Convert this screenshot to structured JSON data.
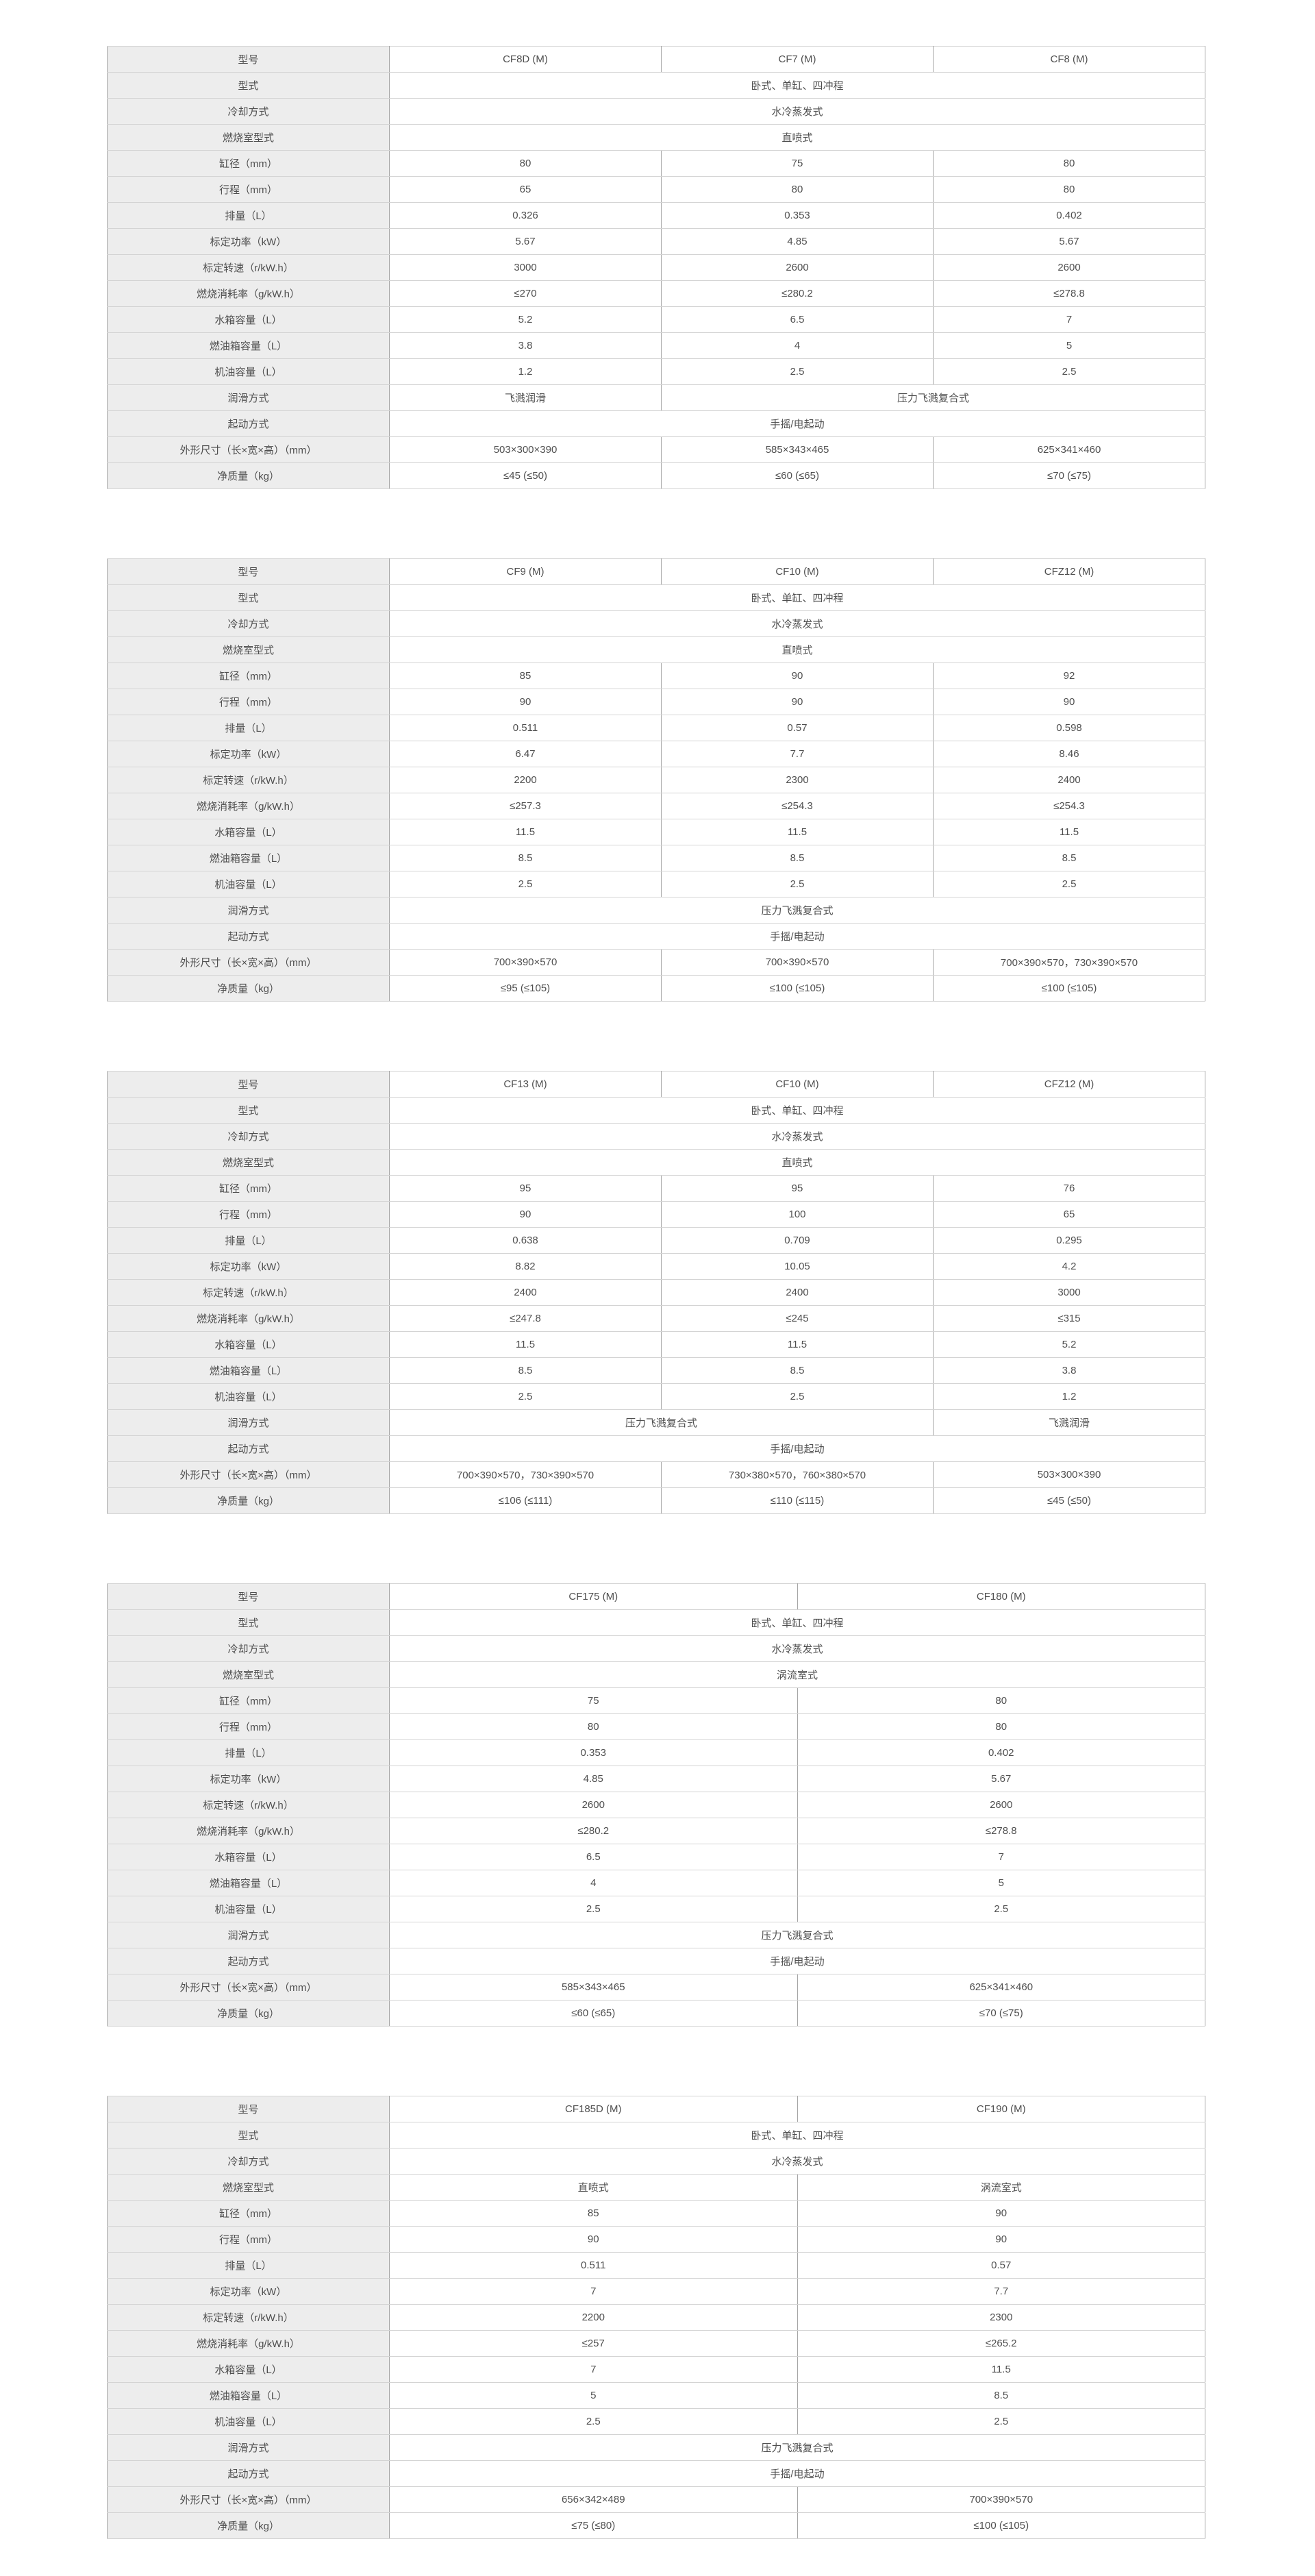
{
  "page": {
    "background": "#ffffff",
    "label_cell_bg": "#ededed",
    "horizontal_border": "#d4d4d4",
    "vertical_border": "#a6a6a6",
    "text_color": "#4f4f4f"
  },
  "row_labels": [
    "型号",
    "型式",
    "冷却方式",
    "燃烧室型式",
    "缸径（mm）",
    "行程（mm）",
    "排量（L）",
    "标定功率（kW）",
    "标定转速（r/kW.h）",
    "燃烧消耗率（g/kW.h）",
    "水箱容量（L）",
    "燃油箱容量（L）",
    "机油容量（L）",
    "润滑方式",
    "起动方式",
    "外形尺寸（长×宽×高）（mm）",
    "净质量（kg）"
  ],
  "tables": [
    {
      "name": "spec-table-1",
      "rows": [
        [
          {
            "t": "CF8D (M)",
            "s": 1
          },
          {
            "t": "CF7 (M)",
            "s": 1
          },
          {
            "t": "CF8 (M)",
            "s": 1
          }
        ],
        [
          {
            "t": "卧式、单缸、四冲程",
            "s": 3
          }
        ],
        [
          {
            "t": "水冷蒸发式",
            "s": 3
          }
        ],
        [
          {
            "t": "直喷式",
            "s": 3
          }
        ],
        [
          {
            "t": "80",
            "s": 1
          },
          {
            "t": "75",
            "s": 1
          },
          {
            "t": "80",
            "s": 1
          }
        ],
        [
          {
            "t": "65",
            "s": 1
          },
          {
            "t": "80",
            "s": 1
          },
          {
            "t": "80",
            "s": 1
          }
        ],
        [
          {
            "t": "0.326",
            "s": 1
          },
          {
            "t": "0.353",
            "s": 1
          },
          {
            "t": "0.402",
            "s": 1
          }
        ],
        [
          {
            "t": "5.67",
            "s": 1
          },
          {
            "t": "4.85",
            "s": 1
          },
          {
            "t": "5.67",
            "s": 1
          }
        ],
        [
          {
            "t": "3000",
            "s": 1
          },
          {
            "t": "2600",
            "s": 1
          },
          {
            "t": "2600",
            "s": 1
          }
        ],
        [
          {
            "t": "≤270",
            "s": 1
          },
          {
            "t": "≤280.2",
            "s": 1
          },
          {
            "t": "≤278.8",
            "s": 1
          }
        ],
        [
          {
            "t": "5.2",
            "s": 1
          },
          {
            "t": "6.5",
            "s": 1
          },
          {
            "t": "7",
            "s": 1
          }
        ],
        [
          {
            "t": "3.8",
            "s": 1
          },
          {
            "t": "4",
            "s": 1
          },
          {
            "t": "5",
            "s": 1
          }
        ],
        [
          {
            "t": "1.2",
            "s": 1
          },
          {
            "t": "2.5",
            "s": 1
          },
          {
            "t": "2.5",
            "s": 1
          }
        ],
        [
          {
            "t": "飞溅润滑",
            "s": 1
          },
          {
            "t": "压力飞溅复合式",
            "s": 2
          }
        ],
        [
          {
            "t": "手摇/电起动",
            "s": 3
          }
        ],
        [
          {
            "t": "503×300×390",
            "s": 1
          },
          {
            "t": "585×343×465",
            "s": 1
          },
          {
            "t": "625×341×460",
            "s": 1
          }
        ],
        [
          {
            "t": "≤45 (≤50)",
            "s": 1
          },
          {
            "t": "≤60 (≤65)",
            "s": 1
          },
          {
            "t": "≤70 (≤75)",
            "s": 1
          }
        ]
      ]
    },
    {
      "name": "spec-table-2",
      "rows": [
        [
          {
            "t": "CF9 (M)",
            "s": 1
          },
          {
            "t": "CF10 (M)",
            "s": 1
          },
          {
            "t": "CFZ12 (M)",
            "s": 1
          }
        ],
        [
          {
            "t": "卧式、单缸、四冲程",
            "s": 3
          }
        ],
        [
          {
            "t": "水冷蒸发式",
            "s": 3
          }
        ],
        [
          {
            "t": "直喷式",
            "s": 3
          }
        ],
        [
          {
            "t": "85",
            "s": 1
          },
          {
            "t": "90",
            "s": 1
          },
          {
            "t": "92",
            "s": 1
          }
        ],
        [
          {
            "t": "90",
            "s": 1
          },
          {
            "t": "90",
            "s": 1
          },
          {
            "t": "90",
            "s": 1
          }
        ],
        [
          {
            "t": "0.511",
            "s": 1
          },
          {
            "t": "0.57",
            "s": 1
          },
          {
            "t": "0.598",
            "s": 1
          }
        ],
        [
          {
            "t": "6.47",
            "s": 1
          },
          {
            "t": "7.7",
            "s": 1
          },
          {
            "t": "8.46",
            "s": 1
          }
        ],
        [
          {
            "t": "2200",
            "s": 1
          },
          {
            "t": "2300",
            "s": 1
          },
          {
            "t": "2400",
            "s": 1
          }
        ],
        [
          {
            "t": "≤257.3",
            "s": 1
          },
          {
            "t": "≤254.3",
            "s": 1
          },
          {
            "t": "≤254.3",
            "s": 1
          }
        ],
        [
          {
            "t": "11.5",
            "s": 1
          },
          {
            "t": "11.5",
            "s": 1
          },
          {
            "t": "11.5",
            "s": 1
          }
        ],
        [
          {
            "t": "8.5",
            "s": 1
          },
          {
            "t": "8.5",
            "s": 1
          },
          {
            "t": "8.5",
            "s": 1
          }
        ],
        [
          {
            "t": "2.5",
            "s": 1
          },
          {
            "t": "2.5",
            "s": 1
          },
          {
            "t": "2.5",
            "s": 1
          }
        ],
        [
          {
            "t": "压力飞溅复合式",
            "s": 3
          }
        ],
        [
          {
            "t": "手摇/电起动",
            "s": 3
          }
        ],
        [
          {
            "t": "700×390×570",
            "s": 1
          },
          {
            "t": "700×390×570",
            "s": 1
          },
          {
            "t": "700×390×570，730×390×570",
            "s": 1
          }
        ],
        [
          {
            "t": "≤95 (≤105)",
            "s": 1
          },
          {
            "t": "≤100 (≤105)",
            "s": 1
          },
          {
            "t": "≤100 (≤105)",
            "s": 1
          }
        ]
      ]
    },
    {
      "name": "spec-table-3",
      "rows": [
        [
          {
            "t": "CF13 (M)",
            "s": 1
          },
          {
            "t": "CF10 (M)",
            "s": 1
          },
          {
            "t": "CFZ12 (M)",
            "s": 1
          }
        ],
        [
          {
            "t": "卧式、单缸、四冲程",
            "s": 3
          }
        ],
        [
          {
            "t": "水冷蒸发式",
            "s": 3
          }
        ],
        [
          {
            "t": "直喷式",
            "s": 3
          }
        ],
        [
          {
            "t": "95",
            "s": 1
          },
          {
            "t": "95",
            "s": 1
          },
          {
            "t": "76",
            "s": 1
          }
        ],
        [
          {
            "t": "90",
            "s": 1
          },
          {
            "t": "100",
            "s": 1
          },
          {
            "t": "65",
            "s": 1
          }
        ],
        [
          {
            "t": "0.638",
            "s": 1
          },
          {
            "t": "0.709",
            "s": 1
          },
          {
            "t": "0.295",
            "s": 1
          }
        ],
        [
          {
            "t": "8.82",
            "s": 1
          },
          {
            "t": "10.05",
            "s": 1
          },
          {
            "t": "4.2",
            "s": 1
          }
        ],
        [
          {
            "t": "2400",
            "s": 1
          },
          {
            "t": "2400",
            "s": 1
          },
          {
            "t": "3000",
            "s": 1
          }
        ],
        [
          {
            "t": "≤247.8",
            "s": 1
          },
          {
            "t": "≤245",
            "s": 1
          },
          {
            "t": "≤315",
            "s": 1
          }
        ],
        [
          {
            "t": "11.5",
            "s": 1
          },
          {
            "t": "11.5",
            "s": 1
          },
          {
            "t": "5.2",
            "s": 1
          }
        ],
        [
          {
            "t": "8.5",
            "s": 1
          },
          {
            "t": "8.5",
            "s": 1
          },
          {
            "t": "3.8",
            "s": 1
          }
        ],
        [
          {
            "t": "2.5",
            "s": 1
          },
          {
            "t": "2.5",
            "s": 1
          },
          {
            "t": "1.2",
            "s": 1
          }
        ],
        [
          {
            "t": "压力飞溅复合式",
            "s": 2
          },
          {
            "t": "飞溅润滑",
            "s": 1
          }
        ],
        [
          {
            "t": "手摇/电起动",
            "s": 3
          }
        ],
        [
          {
            "t": "700×390×570，730×390×570",
            "s": 1
          },
          {
            "t": "730×380×570，760×380×570",
            "s": 1
          },
          {
            "t": "503×300×390",
            "s": 1
          }
        ],
        [
          {
            "t": "≤106 (≤111)",
            "s": 1
          },
          {
            "t": "≤110 (≤115)",
            "s": 1
          },
          {
            "t": "≤45 (≤50)",
            "s": 1
          }
        ]
      ]
    },
    {
      "name": "spec-table-4",
      "rows": [
        [
          {
            "t": "CF175 (M)",
            "s": 1
          },
          {
            "t": "CF180 (M)",
            "s": 1
          }
        ],
        [
          {
            "t": "卧式、单缸、四冲程",
            "s": 2
          }
        ],
        [
          {
            "t": "水冷蒸发式",
            "s": 2
          }
        ],
        [
          {
            "t": "涡流室式",
            "s": 2
          }
        ],
        [
          {
            "t": "75",
            "s": 1
          },
          {
            "t": "80",
            "s": 1
          }
        ],
        [
          {
            "t": "80",
            "s": 1
          },
          {
            "t": "80",
            "s": 1
          }
        ],
        [
          {
            "t": "0.353",
            "s": 1
          },
          {
            "t": "0.402",
            "s": 1
          }
        ],
        [
          {
            "t": "4.85",
            "s": 1
          },
          {
            "t": "5.67",
            "s": 1
          }
        ],
        [
          {
            "t": "2600",
            "s": 1
          },
          {
            "t": "2600",
            "s": 1
          }
        ],
        [
          {
            "t": "≤280.2",
            "s": 1
          },
          {
            "t": "≤278.8",
            "s": 1
          }
        ],
        [
          {
            "t": "6.5",
            "s": 1
          },
          {
            "t": "7",
            "s": 1
          }
        ],
        [
          {
            "t": "4",
            "s": 1
          },
          {
            "t": "5",
            "s": 1
          }
        ],
        [
          {
            "t": "2.5",
            "s": 1
          },
          {
            "t": "2.5",
            "s": 1
          }
        ],
        [
          {
            "t": "压力飞溅复合式",
            "s": 2
          }
        ],
        [
          {
            "t": "手摇/电起动",
            "s": 2
          }
        ],
        [
          {
            "t": "585×343×465",
            "s": 1
          },
          {
            "t": "625×341×460",
            "s": 1
          }
        ],
        [
          {
            "t": "≤60 (≤65)",
            "s": 1
          },
          {
            "t": "≤70 (≤75)",
            "s": 1
          }
        ]
      ]
    },
    {
      "name": "spec-table-5",
      "rows": [
        [
          {
            "t": "CF185D (M)",
            "s": 1
          },
          {
            "t": "CF190 (M)",
            "s": 1
          }
        ],
        [
          {
            "t": "卧式、单缸、四冲程",
            "s": 2
          }
        ],
        [
          {
            "t": "水冷蒸发式",
            "s": 2
          }
        ],
        [
          {
            "t": "直喷式",
            "s": 1
          },
          {
            "t": "涡流室式",
            "s": 1
          }
        ],
        [
          {
            "t": "85",
            "s": 1
          },
          {
            "t": "90",
            "s": 1
          }
        ],
        [
          {
            "t": "90",
            "s": 1
          },
          {
            "t": "90",
            "s": 1
          }
        ],
        [
          {
            "t": "0.511",
            "s": 1
          },
          {
            "t": "0.57",
            "s": 1
          }
        ],
        [
          {
            "t": "7",
            "s": 1
          },
          {
            "t": "7.7",
            "s": 1
          }
        ],
        [
          {
            "t": "2200",
            "s": 1
          },
          {
            "t": "2300",
            "s": 1
          }
        ],
        [
          {
            "t": "≤257",
            "s": 1
          },
          {
            "t": "≤265.2",
            "s": 1
          }
        ],
        [
          {
            "t": "7",
            "s": 1
          },
          {
            "t": "11.5",
            "s": 1
          }
        ],
        [
          {
            "t": "5",
            "s": 1
          },
          {
            "t": "8.5",
            "s": 1
          }
        ],
        [
          {
            "t": "2.5",
            "s": 1
          },
          {
            "t": "2.5",
            "s": 1
          }
        ],
        [
          {
            "t": "压力飞溅复合式",
            "s": 2
          }
        ],
        [
          {
            "t": "手摇/电起动",
            "s": 2
          }
        ],
        [
          {
            "t": "656×342×489",
            "s": 1
          },
          {
            "t": "700×390×570",
            "s": 1
          }
        ],
        [
          {
            "t": "≤75 (≤80)",
            "s": 1
          },
          {
            "t": "≤100 (≤105)",
            "s": 1
          }
        ]
      ]
    }
  ]
}
